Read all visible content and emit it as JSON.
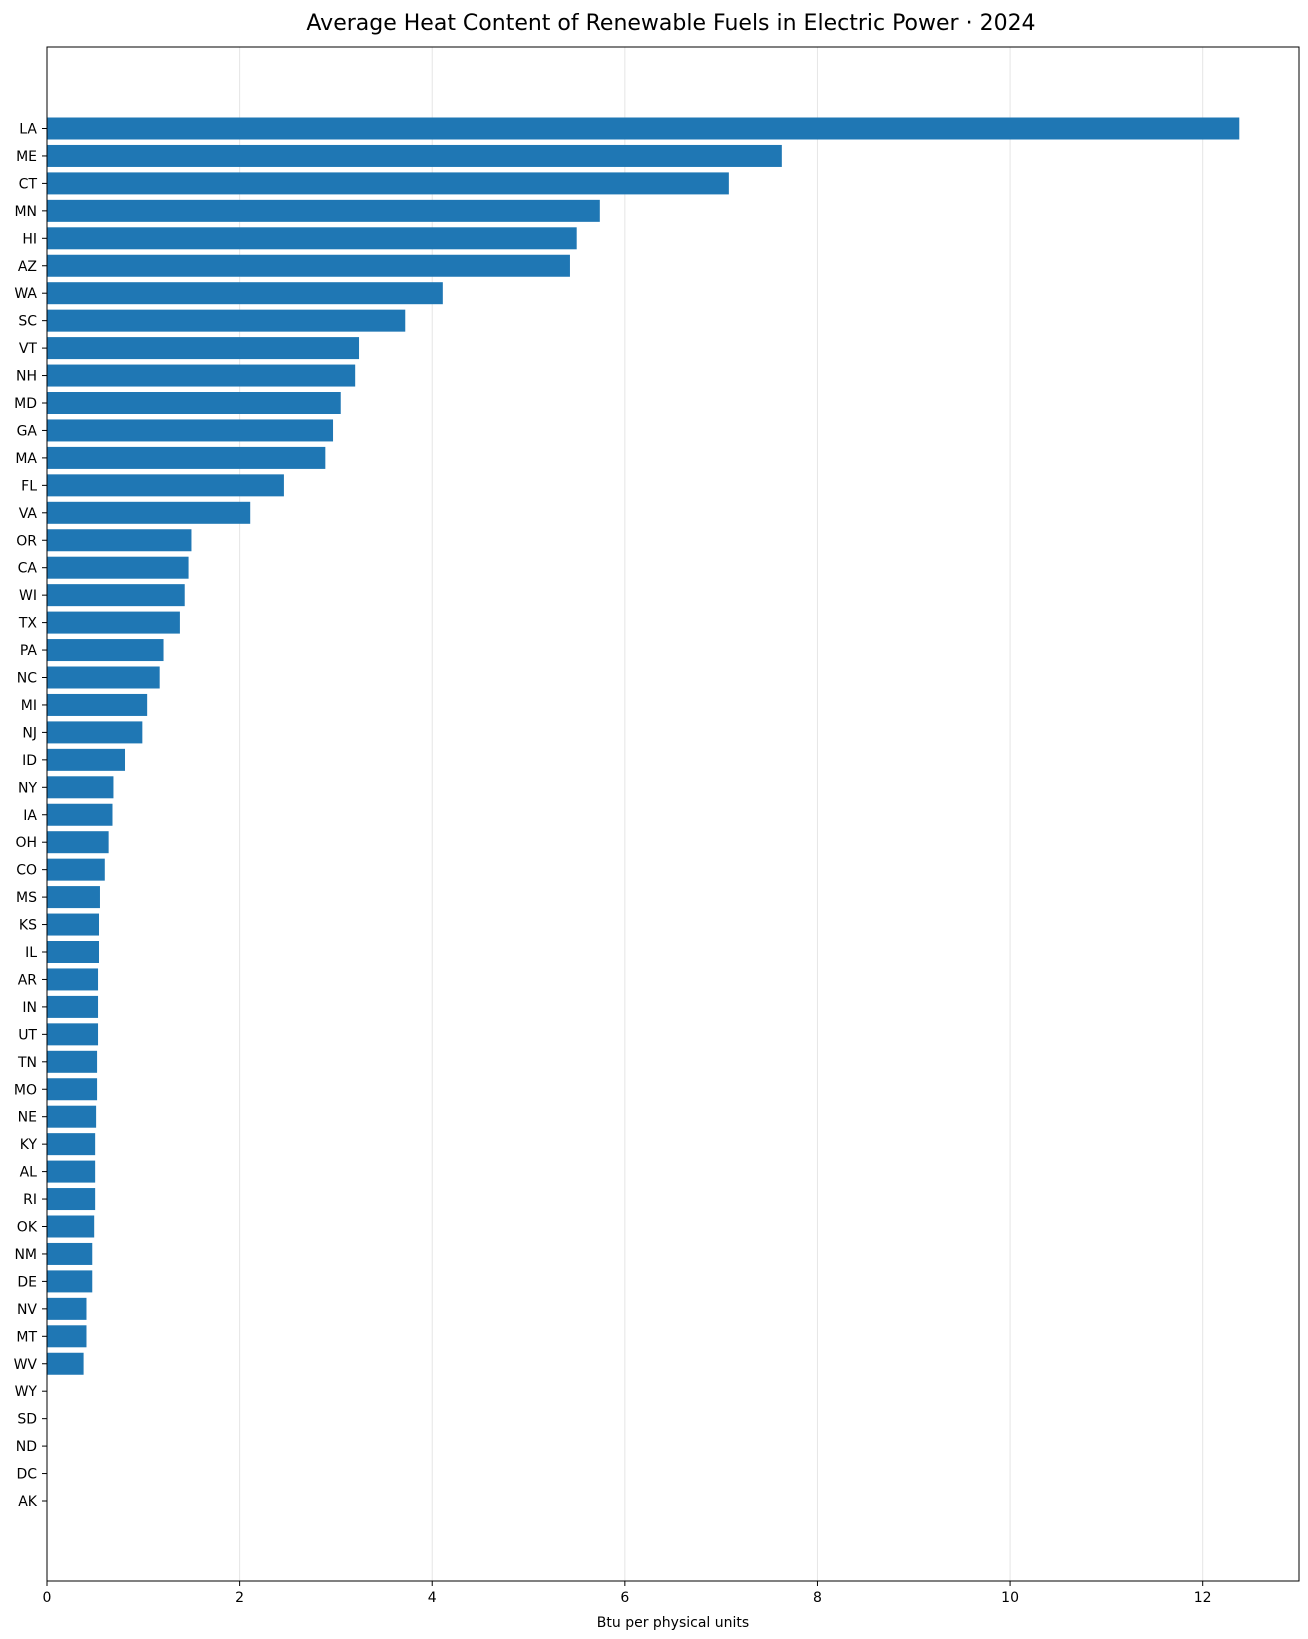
{
  "chart_data": {
    "type": "bar",
    "orientation": "horizontal",
    "title": "Average Heat Content of Renewable Fuels in Electric Power · 2024",
    "xlabel": "Btu per physical units",
    "ylabel": "",
    "xlim": [
      0,
      13
    ],
    "xticks": [
      0,
      2,
      4,
      6,
      8,
      10,
      12
    ],
    "grid": "vertical",
    "bar_color": "#1f77b4",
    "categories": [
      "LA",
      "ME",
      "CT",
      "MN",
      "HI",
      "AZ",
      "WA",
      "SC",
      "VT",
      "NH",
      "MD",
      "GA",
      "MA",
      "FL",
      "VA",
      "OR",
      "CA",
      "WI",
      "TX",
      "PA",
      "NC",
      "MI",
      "NJ",
      "ID",
      "NY",
      "IA",
      "OH",
      "CO",
      "MS",
      "KS",
      "IL",
      "AR",
      "IN",
      "UT",
      "TN",
      "MO",
      "NE",
      "KY",
      "AL",
      "RI",
      "OK",
      "NM",
      "DE",
      "NV",
      "MT",
      "WV",
      "WY",
      "SD",
      "ND",
      "DC",
      "AK"
    ],
    "values": [
      12.38,
      7.63,
      7.08,
      5.74,
      5.5,
      5.43,
      4.11,
      3.72,
      3.24,
      3.2,
      3.05,
      2.97,
      2.89,
      2.46,
      2.11,
      1.5,
      1.47,
      1.43,
      1.38,
      1.21,
      1.17,
      1.04,
      0.99,
      0.81,
      0.69,
      0.68,
      0.64,
      0.6,
      0.55,
      0.54,
      0.54,
      0.53,
      0.53,
      0.53,
      0.52,
      0.52,
      0.51,
      0.5,
      0.5,
      0.5,
      0.49,
      0.47,
      0.47,
      0.41,
      0.41,
      0.38,
      0,
      0,
      0,
      0,
      0
    ]
  }
}
